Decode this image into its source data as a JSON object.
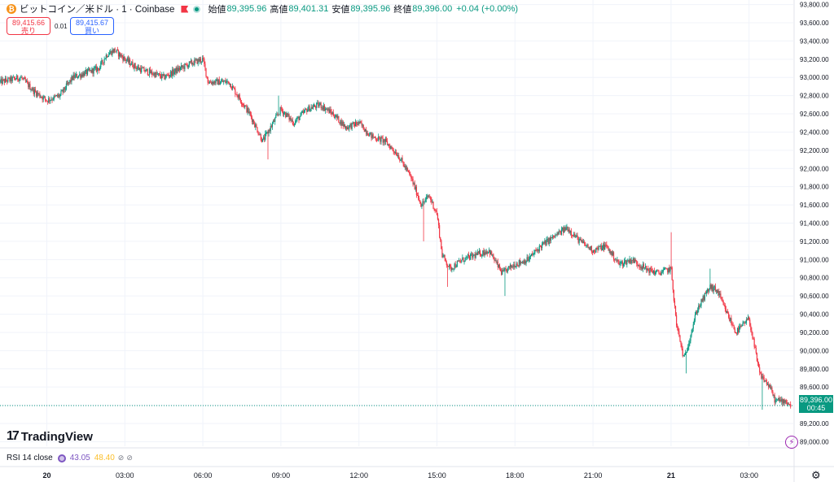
{
  "header": {
    "coin_glyph": "₿",
    "symbol": "ビットコイン／米ドル · 1 · Coinbase",
    "open_label": "始値",
    "open": "89,395.96",
    "high_label": "高値",
    "high": "89,401.31",
    "low_label": "安値",
    "low": "89,395.96",
    "close_label": "終値",
    "close": "89,396.00",
    "change": "+0.04 (+0.00%)"
  },
  "trade": {
    "sell_price": "89,415.66",
    "sell_label": "売り",
    "spread": "0.01",
    "buy_price": "89,415.67",
    "buy_label": "買い"
  },
  "branding": {
    "logo_mark": "17",
    "logo_text": "TradingView"
  },
  "rsi": {
    "label": "RSI 14 close",
    "value1": "43.05",
    "value2": "48.40",
    "icon1": "⊘",
    "icon2": "⊘"
  },
  "last_price": {
    "value": "89,396.00",
    "countdown": "00:45"
  },
  "colors": {
    "up": "#089981",
    "down": "#f23645",
    "grid": "#f0f3fa",
    "text": "#131722"
  },
  "icons": {
    "bolt": "⚡",
    "settings": "⚙"
  },
  "chart_data": {
    "type": "candlestick",
    "y_ticks": [
      89000,
      89200,
      89400,
      89600,
      89800,
      90000,
      90200,
      90400,
      90600,
      90800,
      91000,
      91200,
      91400,
      91600,
      91800,
      92000,
      92200,
      92400,
      92600,
      92800,
      93000,
      93200,
      93400,
      93600,
      93800
    ],
    "y_tick_labels": [
      "89,000.00",
      "89,200.00",
      "89,400.00",
      "89,600.00",
      "89,800.00",
      "90,000.00",
      "90,200.00",
      "90,400.00",
      "90,600.00",
      "90,800.00",
      "91,000.00",
      "91,200.00",
      "91,400.00",
      "91,600.00",
      "91,800.00",
      "92,000.00",
      "92,200.00",
      "92,400.00",
      "92,600.00",
      "92,800.00",
      "93,000.00",
      "93,200.00",
      "93,400.00",
      "93,600.00",
      "93,800.00"
    ],
    "ylim": [
      88950,
      93850
    ],
    "x_tick_hours": [
      0,
      3,
      6,
      9,
      12,
      15,
      18,
      21,
      24,
      27
    ],
    "x_tick_labels": [
      "20",
      "03:00",
      "06:00",
      "09:00",
      "12:00",
      "15:00",
      "18:00",
      "21:00",
      "21",
      "03:00"
    ],
    "x_bold_labels": [
      "20",
      "21"
    ],
    "xlim_hours": [
      -1.8,
      28.7
    ],
    "last_price": 89396.0,
    "price_path": [
      [
        -1.8,
        92950
      ],
      [
        -1.0,
        93000
      ],
      [
        -0.5,
        92850
      ],
      [
        0.0,
        92750
      ],
      [
        0.5,
        92800
      ],
      [
        1.0,
        93000
      ],
      [
        1.5,
        93050
      ],
      [
        2.0,
        93100
      ],
      [
        2.3,
        93250
      ],
      [
        2.6,
        93300
      ],
      [
        3.0,
        93200
      ],
      [
        3.5,
        93100
      ],
      [
        4.0,
        93050
      ],
      [
        4.5,
        93000
      ],
      [
        5.0,
        93080
      ],
      [
        5.5,
        93150
      ],
      [
        6.0,
        93200
      ],
      [
        6.2,
        92950
      ],
      [
        7.0,
        92950
      ],
      [
        7.8,
        92600
      ],
      [
        8.3,
        92300
      ],
      [
        8.7,
        92500
      ],
      [
        9.0,
        92650
      ],
      [
        9.5,
        92500
      ],
      [
        10.0,
        92650
      ],
      [
        10.5,
        92700
      ],
      [
        11.0,
        92600
      ],
      [
        11.5,
        92450
      ],
      [
        12.0,
        92500
      ],
      [
        12.5,
        92350
      ],
      [
        13.0,
        92300
      ],
      [
        13.5,
        92150
      ],
      [
        14.0,
        91900
      ],
      [
        14.4,
        91600
      ],
      [
        14.7,
        91700
      ],
      [
        15.0,
        91500
      ],
      [
        15.2,
        91050
      ],
      [
        15.5,
        90900
      ],
      [
        16.0,
        91000
      ],
      [
        16.5,
        91050
      ],
      [
        17.0,
        91100
      ],
      [
        17.5,
        90850
      ],
      [
        18.0,
        90950
      ],
      [
        18.5,
        91000
      ],
      [
        19.0,
        91150
      ],
      [
        19.5,
        91250
      ],
      [
        20.0,
        91350
      ],
      [
        20.5,
        91200
      ],
      [
        21.0,
        91100
      ],
      [
        21.5,
        91150
      ],
      [
        22.0,
        90950
      ],
      [
        22.5,
        91000
      ],
      [
        23.0,
        90900
      ],
      [
        23.5,
        90850
      ],
      [
        24.0,
        90900
      ],
      [
        24.2,
        90300
      ],
      [
        24.5,
        89900
      ],
      [
        25.0,
        90450
      ],
      [
        25.5,
        90700
      ],
      [
        25.8,
        90650
      ],
      [
        26.0,
        90500
      ],
      [
        26.5,
        90200
      ],
      [
        27.0,
        90350
      ],
      [
        27.4,
        89750
      ],
      [
        27.8,
        89600
      ],
      [
        28.0,
        89450
      ],
      [
        28.4,
        89450
      ],
      [
        28.6,
        89396
      ]
    ],
    "spikes": [
      [
        8.5,
        92100
      ],
      [
        8.9,
        92800
      ],
      [
        14.5,
        91200
      ],
      [
        15.4,
        90700
      ],
      [
        17.6,
        90600
      ],
      [
        24.0,
        91300
      ],
      [
        24.6,
        89750
      ],
      [
        25.5,
        90900
      ],
      [
        27.5,
        89350
      ]
    ],
    "grid": true
  }
}
